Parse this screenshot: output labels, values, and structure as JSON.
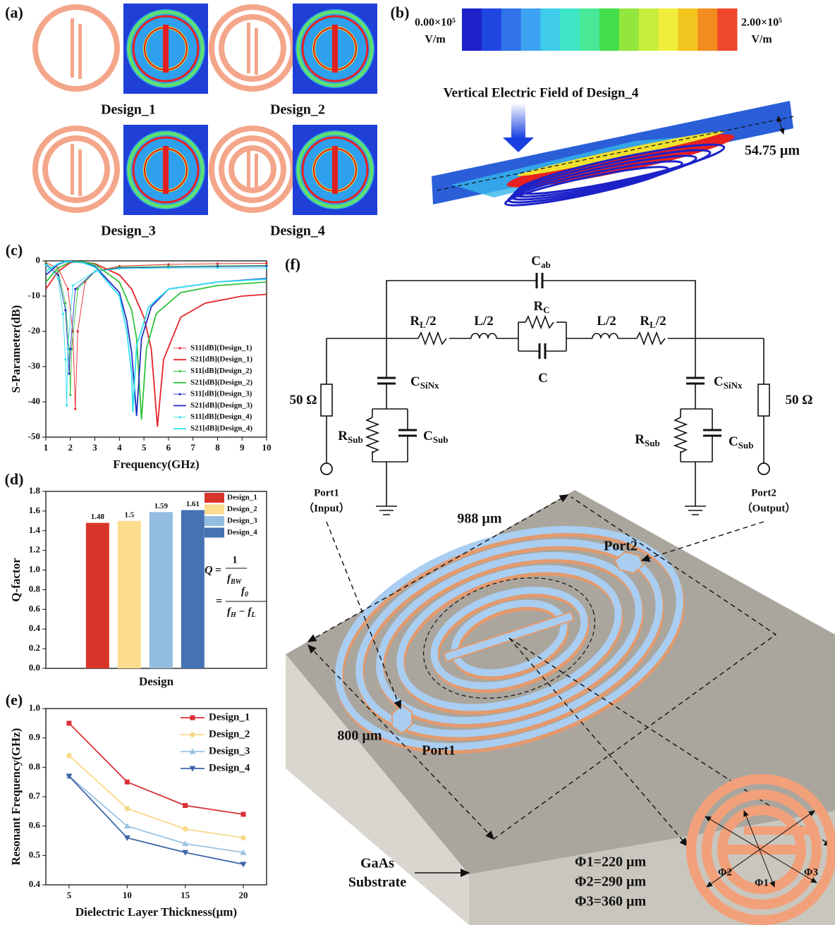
{
  "panel_labels": [
    "(a)",
    "(b)",
    "(c)",
    "(d)",
    "(e)",
    "(f)"
  ],
  "designs": [
    "Design_1",
    "Design_2",
    "Design_3",
    "Design_4"
  ],
  "field": {
    "min_label": "0.00×10⁵",
    "max_label": "2.00×10⁵",
    "unit": "V/m",
    "title": "Vertical Electric Field of Design_4",
    "thickness": "54.75 µm",
    "colors": [
      "#1c22c8",
      "#2046e0",
      "#2f72ea",
      "#3ea2f2",
      "#3fcdea",
      "#3fe6c6",
      "#48e896",
      "#44de4a",
      "#92e63e",
      "#c8ee3c",
      "#f0ee3a",
      "#f2c41e",
      "#f28c1e",
      "#f0482c"
    ]
  },
  "circuit": {
    "labels": [
      {
        "main": "C",
        "sub": "ab"
      },
      {
        "main": "R",
        "sub": "L",
        "suffix": "/2"
      },
      {
        "main": "L/2"
      },
      {
        "main": "R",
        "sub": "C"
      },
      {
        "main": "C"
      },
      {
        "main": "L/2"
      },
      {
        "main": "R",
        "sub": "L",
        "suffix": "/2"
      },
      {
        "main": "C",
        "sub": "SiNx"
      },
      {
        "main": "C",
        "sub": "SiNx"
      },
      {
        "main": "50 Ω"
      },
      {
        "main": "50 Ω"
      },
      {
        "main": "R",
        "sub": "Sub"
      },
      {
        "main": "C",
        "sub": "Sub"
      },
      {
        "main": "R",
        "sub": "Sub"
      },
      {
        "main": "C",
        "sub": "Sub"
      }
    ],
    "ports": [
      {
        "name": "Port1",
        "role": "（Input）"
      },
      {
        "name": "Port2",
        "role": "（Output）"
      }
    ]
  },
  "layout": {
    "width": "988 µm",
    "length": "800 µm",
    "ports": [
      "Port1",
      "Port2"
    ],
    "substrate": [
      "GaAs",
      "Substrate"
    ],
    "diameters": [
      "Φ1=220 µm",
      "Φ2=290 µm",
      "Φ3=360 µm"
    ],
    "inset_labels": [
      "Φ1",
      "Φ2",
      "Φ3"
    ]
  },
  "chart_data": [
    {
      "type": "line",
      "xlabel": "Frequency(GHz)",
      "ylabel": "S-Parameter(dB)",
      "xlim": [
        1,
        10
      ],
      "xticks": [
        1,
        2,
        3,
        4,
        5,
        6,
        7,
        8,
        9,
        10
      ],
      "ylim": [
        -50,
        0
      ],
      "yticks": [
        -50,
        -40,
        -30,
        -20,
        -10,
        0
      ],
      "legend": "lower right",
      "series": [
        {
          "name": "S11[dB](Design_1)",
          "color": "#e8232a",
          "marker": "dot",
          "x": [
            1,
            1.5,
            1.9,
            2.1,
            2.2,
            2.3,
            2.6,
            3,
            4,
            6,
            8,
            10
          ],
          "values": [
            -0.5,
            -2,
            -8,
            -20,
            -42,
            -20,
            -6,
            -3,
            -1.5,
            -1,
            -0.8,
            -0.7
          ]
        },
        {
          "name": "S21[dB](Design_1)",
          "color": "#e8232a",
          "x": [
            1,
            1.5,
            2,
            2.3,
            3,
            4,
            4.5,
            5,
            5.3,
            5.55,
            5.8,
            6.5,
            7.5,
            9,
            10
          ],
          "values": [
            -8,
            -3,
            -0.5,
            -0.2,
            -0.8,
            -4,
            -8,
            -16,
            -25,
            -47,
            -28,
            -16,
            -12,
            -10,
            -9.5
          ]
        },
        {
          "name": "S11[dB](Design_2)",
          "color": "#2fc33b",
          "marker": "dot",
          "x": [
            1,
            1.5,
            1.8,
            1.95,
            2,
            2.05,
            2.3,
            3,
            4,
            6,
            8,
            10
          ],
          "values": [
            -0.7,
            -3,
            -12,
            -25,
            -38,
            -25,
            -8,
            -3,
            -1.8,
            -1.5,
            -1.4,
            -1.3
          ]
        },
        {
          "name": "S21[dB](Design_2)",
          "color": "#2fc33b",
          "x": [
            1,
            1.5,
            2,
            2.5,
            3,
            4,
            4.5,
            4.7,
            4.9,
            5.1,
            5.5,
            6.5,
            8,
            10
          ],
          "values": [
            -6,
            -2,
            -0.3,
            -0.3,
            -1,
            -6,
            -14,
            -22,
            -45,
            -25,
            -15,
            -9,
            -7,
            -6
          ]
        },
        {
          "name": "S11[dB](Design_3)",
          "color": "#1f2fc0",
          "marker": "dot",
          "x": [
            1,
            1.5,
            1.8,
            1.9,
            1.95,
            2,
            2.2,
            3,
            4,
            6,
            8,
            10
          ],
          "values": [
            -1,
            -4,
            -14,
            -25,
            -32,
            -25,
            -8,
            -3,
            -2,
            -1.8,
            -1.6,
            -1.5
          ]
        },
        {
          "name": "S21[dB](Design_3)",
          "color": "#1f2fc0",
          "x": [
            1,
            1.5,
            1.8,
            2.5,
            3,
            4,
            4.3,
            4.5,
            4.7,
            4.9,
            5.3,
            6,
            8,
            10
          ],
          "values": [
            -4,
            -1,
            -0.2,
            -0.5,
            -1.5,
            -9,
            -17,
            -26,
            -44,
            -22,
            -13,
            -8,
            -6,
            -5
          ]
        },
        {
          "name": "S11[dB](Design_4)",
          "color": "#2fe2f0",
          "marker": "dot",
          "x": [
            1,
            1.5,
            1.7,
            1.8,
            1.85,
            1.9,
            2.1,
            3,
            4,
            6,
            8,
            10
          ],
          "values": [
            -1.2,
            -5,
            -15,
            -28,
            -41,
            -25,
            -7,
            -3,
            -2.2,
            -2,
            -2,
            -2
          ]
        },
        {
          "name": "S21[dB](Design_4)",
          "color": "#2fe2f0",
          "x": [
            1,
            1.5,
            1.8,
            2.5,
            3,
            4,
            4.3,
            4.5,
            4.55,
            4.7,
            5.2,
            6,
            8,
            10
          ],
          "values": [
            -3,
            -0.8,
            -0.1,
            -0.5,
            -1.8,
            -10,
            -20,
            -32,
            -43,
            -24,
            -13,
            -8,
            -6,
            -5.2
          ]
        }
      ]
    },
    {
      "type": "bar",
      "xlabel": "Design",
      "ylabel": "Q-factor",
      "categories": [
        null
      ],
      "ylim": [
        0,
        1.8
      ],
      "yticks": [
        {
          "value": 0,
          "label": "0.0"
        },
        0.2,
        0.4,
        0.6,
        0.8,
        {
          "value": 1,
          "label": "1.0"
        },
        1.2,
        1.4,
        1.6,
        1.8
      ],
      "legend": "upper right",
      "series": [
        {
          "name": "Design_1",
          "color": "#d8352a",
          "values": [
            1.48
          ]
        },
        {
          "name": "Design_2",
          "color": "#fcdc8e",
          "values": [
            1.5
          ]
        },
        {
          "name": "Design_3",
          "color": "#93bde0",
          "values": [
            1.59
          ]
        },
        {
          "name": "Design_4",
          "color": "#4672b2",
          "values": [
            1.61
          ]
        }
      ],
      "annotation": {
        "lhs": "Q",
        "eq": "=",
        "n1": "1",
        "d1": [
          "f",
          "BW"
        ],
        "n2": [
          "f",
          "0"
        ],
        "d2": [
          "f",
          "H",
          " − f",
          "L"
        ]
      }
    },
    {
      "type": "line",
      "xlabel": "Dielectric Layer Thickness(µm)",
      "ylabel": "Resonant Frequency(GHz)",
      "x": [
        5,
        10,
        15,
        20
      ],
      "xlim": [
        3,
        22
      ],
      "xticks": [
        5,
        10,
        15,
        20
      ],
      "ylim": [
        0.4,
        1
      ],
      "yticks": [
        0.4,
        0.5,
        0.6,
        0.7,
        0.8,
        0.9,
        {
          "value": 1,
          "label": "1.0"
        }
      ],
      "legend": "upper right",
      "series": [
        {
          "name": "Design_1",
          "color": "#d9303a",
          "marker": "square",
          "values": [
            0.95,
            0.75,
            0.67,
            0.64
          ]
        },
        {
          "name": "Design_2",
          "color": "#f8d98a",
          "marker": "circle",
          "values": [
            0.84,
            0.66,
            0.59,
            0.56
          ]
        },
        {
          "name": "Design_3",
          "color": "#9cc3e2",
          "marker": "triangle",
          "values": [
            0.77,
            0.6,
            0.54,
            0.51
          ]
        },
        {
          "name": "Design_4",
          "color": "#3e64a8",
          "marker": "triangle-down",
          "values": [
            0.77,
            0.56,
            0.51,
            0.47
          ]
        }
      ]
    }
  ]
}
